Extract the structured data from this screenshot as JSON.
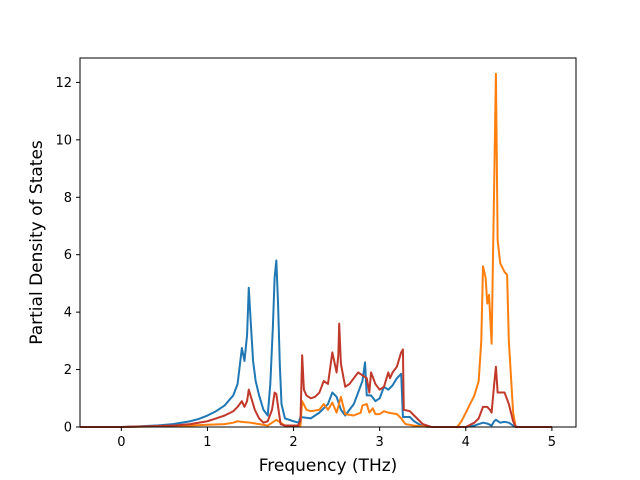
{
  "chart_data": {
    "type": "line",
    "title": "",
    "xlabel": "Frequency (THz)",
    "ylabel": "Partial Density of States",
    "xlim": [
      -0.48,
      5.28
    ],
    "ylim": [
      0,
      12.85
    ],
    "xticks": [
      0,
      1,
      2,
      3,
      4,
      5
    ],
    "yticks": [
      0,
      2,
      4,
      6,
      8,
      10,
      12
    ],
    "grid": false,
    "legend": "none",
    "series": [
      {
        "color": "#1f77b4",
        "points": [
          [
            -0.48,
            0
          ],
          [
            0,
            0
          ],
          [
            0.2,
            0.02
          ],
          [
            0.4,
            0.05
          ],
          [
            0.6,
            0.1
          ],
          [
            0.8,
            0.2
          ],
          [
            0.9,
            0.28
          ],
          [
            1.0,
            0.4
          ],
          [
            1.1,
            0.55
          ],
          [
            1.2,
            0.75
          ],
          [
            1.3,
            1.1
          ],
          [
            1.35,
            1.5
          ],
          [
            1.4,
            2.75
          ],
          [
            1.43,
            2.3
          ],
          [
            1.46,
            3.2
          ],
          [
            1.48,
            4.85
          ],
          [
            1.5,
            3.8
          ],
          [
            1.53,
            2.3
          ],
          [
            1.56,
            1.6
          ],
          [
            1.6,
            1.1
          ],
          [
            1.65,
            0.6
          ],
          [
            1.7,
            0.4
          ],
          [
            1.73,
            1.5
          ],
          [
            1.76,
            3.5
          ],
          [
            1.78,
            5.2
          ],
          [
            1.8,
            5.8
          ],
          [
            1.82,
            4.3
          ],
          [
            1.84,
            2.2
          ],
          [
            1.86,
            0.8
          ],
          [
            1.9,
            0.3
          ],
          [
            2.0,
            0.2
          ],
          [
            2.06,
            0.15
          ],
          [
            2.08,
            0.35
          ],
          [
            2.2,
            0.3
          ],
          [
            2.3,
            0.5
          ],
          [
            2.4,
            0.8
          ],
          [
            2.45,
            1.2
          ],
          [
            2.5,
            1.05
          ],
          [
            2.55,
            0.6
          ],
          [
            2.6,
            0.4
          ],
          [
            2.65,
            0.6
          ],
          [
            2.7,
            0.8
          ],
          [
            2.75,
            1.2
          ],
          [
            2.8,
            1.6
          ],
          [
            2.83,
            2.25
          ],
          [
            2.85,
            1.1
          ],
          [
            2.9,
            1.1
          ],
          [
            2.95,
            0.9
          ],
          [
            3.0,
            1.0
          ],
          [
            3.05,
            1.4
          ],
          [
            3.1,
            1.3
          ],
          [
            3.15,
            1.45
          ],
          [
            3.2,
            1.7
          ],
          [
            3.25,
            1.85
          ],
          [
            3.27,
            0.35
          ],
          [
            3.35,
            0.35
          ],
          [
            3.4,
            0.2
          ],
          [
            3.5,
            0.02
          ],
          [
            3.6,
            0
          ],
          [
            4.0,
            0
          ],
          [
            4.1,
            0.05
          ],
          [
            4.2,
            0.15
          ],
          [
            4.25,
            0.12
          ],
          [
            4.3,
            0.05
          ],
          [
            4.33,
            0.2
          ],
          [
            4.35,
            0.25
          ],
          [
            4.4,
            0.15
          ],
          [
            4.45,
            0.18
          ],
          [
            4.5,
            0.15
          ],
          [
            4.55,
            0.05
          ],
          [
            4.6,
            0
          ],
          [
            5.0,
            0
          ]
        ]
      },
      {
        "color": "#ff7f0e",
        "points": [
          [
            -0.48,
            0
          ],
          [
            0,
            0
          ],
          [
            0.5,
            0.02
          ],
          [
            0.8,
            0.05
          ],
          [
            1.0,
            0.08
          ],
          [
            1.2,
            0.1
          ],
          [
            1.3,
            0.15
          ],
          [
            1.35,
            0.2
          ],
          [
            1.4,
            0.18
          ],
          [
            1.5,
            0.15
          ],
          [
            1.6,
            0.1
          ],
          [
            1.7,
            0.05
          ],
          [
            1.75,
            0.15
          ],
          [
            1.8,
            0.25
          ],
          [
            1.85,
            0.15
          ],
          [
            1.9,
            0.05
          ],
          [
            2.0,
            0.03
          ],
          [
            2.08,
            0.05
          ],
          [
            2.1,
            0.9
          ],
          [
            2.15,
            0.6
          ],
          [
            2.2,
            0.55
          ],
          [
            2.3,
            0.6
          ],
          [
            2.35,
            0.8
          ],
          [
            2.4,
            0.6
          ],
          [
            2.45,
            0.85
          ],
          [
            2.5,
            0.5
          ],
          [
            2.55,
            1.05
          ],
          [
            2.6,
            0.45
          ],
          [
            2.7,
            0.4
          ],
          [
            2.78,
            0.5
          ],
          [
            2.8,
            0.75
          ],
          [
            2.85,
            0.8
          ],
          [
            2.88,
            0.5
          ],
          [
            2.92,
            0.65
          ],
          [
            2.95,
            0.45
          ],
          [
            3.0,
            0.45
          ],
          [
            3.05,
            0.55
          ],
          [
            3.1,
            0.5
          ],
          [
            3.2,
            0.45
          ],
          [
            3.25,
            0.3
          ],
          [
            3.3,
            0.1
          ],
          [
            3.4,
            0.05
          ],
          [
            3.5,
            0.02
          ],
          [
            3.6,
            0
          ],
          [
            3.9,
            0
          ],
          [
            3.95,
            0.2
          ],
          [
            4.0,
            0.5
          ],
          [
            4.05,
            0.8
          ],
          [
            4.1,
            1.1
          ],
          [
            4.15,
            1.6
          ],
          [
            4.18,
            3.0
          ],
          [
            4.2,
            5.6
          ],
          [
            4.23,
            5.2
          ],
          [
            4.25,
            4.3
          ],
          [
            4.27,
            4.6
          ],
          [
            4.3,
            2.9
          ],
          [
            4.33,
            8.5
          ],
          [
            4.35,
            12.3
          ],
          [
            4.37,
            6.5
          ],
          [
            4.4,
            5.7
          ],
          [
            4.45,
            5.4
          ],
          [
            4.48,
            5.3
          ],
          [
            4.5,
            3.0
          ],
          [
            4.55,
            0.5
          ],
          [
            4.58,
            0
          ],
          [
            5.0,
            0
          ]
        ]
      },
      {
        "color": "#c0392b",
        "points": [
          [
            -0.48,
            0
          ],
          [
            0,
            0
          ],
          [
            0.3,
            0.02
          ],
          [
            0.6,
            0.05
          ],
          [
            0.8,
            0.1
          ],
          [
            1.0,
            0.2
          ],
          [
            1.1,
            0.3
          ],
          [
            1.2,
            0.4
          ],
          [
            1.3,
            0.55
          ],
          [
            1.35,
            0.7
          ],
          [
            1.4,
            0.9
          ],
          [
            1.43,
            0.7
          ],
          [
            1.46,
            0.9
          ],
          [
            1.48,
            1.3
          ],
          [
            1.5,
            1.1
          ],
          [
            1.55,
            0.6
          ],
          [
            1.6,
            0.3
          ],
          [
            1.65,
            0.15
          ],
          [
            1.7,
            0.2
          ],
          [
            1.75,
            0.6
          ],
          [
            1.78,
            1.2
          ],
          [
            1.8,
            1.15
          ],
          [
            1.83,
            0.5
          ],
          [
            1.85,
            0.1
          ],
          [
            1.9,
            0.05
          ],
          [
            2.05,
            0.05
          ],
          [
            2.08,
            0.2
          ],
          [
            2.1,
            2.5
          ],
          [
            2.12,
            1.3
          ],
          [
            2.15,
            1.1
          ],
          [
            2.2,
            1.0
          ],
          [
            2.25,
            1.05
          ],
          [
            2.3,
            1.2
          ],
          [
            2.35,
            1.6
          ],
          [
            2.4,
            1.5
          ],
          [
            2.45,
            2.6
          ],
          [
            2.5,
            1.9
          ],
          [
            2.52,
            2.5
          ],
          [
            2.53,
            3.6
          ],
          [
            2.55,
            2.2
          ],
          [
            2.6,
            1.4
          ],
          [
            2.65,
            1.5
          ],
          [
            2.7,
            1.7
          ],
          [
            2.75,
            1.9
          ],
          [
            2.8,
            1.8
          ],
          [
            2.85,
            1.7
          ],
          [
            2.88,
            1.2
          ],
          [
            2.9,
            1.9
          ],
          [
            2.95,
            1.5
          ],
          [
            3.0,
            1.3
          ],
          [
            3.05,
            1.4
          ],
          [
            3.1,
            1.9
          ],
          [
            3.12,
            1.7
          ],
          [
            3.15,
            1.9
          ],
          [
            3.2,
            2.1
          ],
          [
            3.25,
            2.6
          ],
          [
            3.27,
            2.7
          ],
          [
            3.28,
            0.6
          ],
          [
            3.35,
            0.55
          ],
          [
            3.4,
            0.4
          ],
          [
            3.5,
            0.1
          ],
          [
            3.6,
            0
          ],
          [
            4.0,
            0
          ],
          [
            4.1,
            0.15
          ],
          [
            4.15,
            0.3
          ],
          [
            4.2,
            0.7
          ],
          [
            4.25,
            0.7
          ],
          [
            4.28,
            0.6
          ],
          [
            4.3,
            0.5
          ],
          [
            4.33,
            1.5
          ],
          [
            4.35,
            2.1
          ],
          [
            4.37,
            1.2
          ],
          [
            4.45,
            1.2
          ],
          [
            4.5,
            0.8
          ],
          [
            4.55,
            0.2
          ],
          [
            4.58,
            0
          ],
          [
            5.0,
            0
          ]
        ]
      }
    ]
  }
}
